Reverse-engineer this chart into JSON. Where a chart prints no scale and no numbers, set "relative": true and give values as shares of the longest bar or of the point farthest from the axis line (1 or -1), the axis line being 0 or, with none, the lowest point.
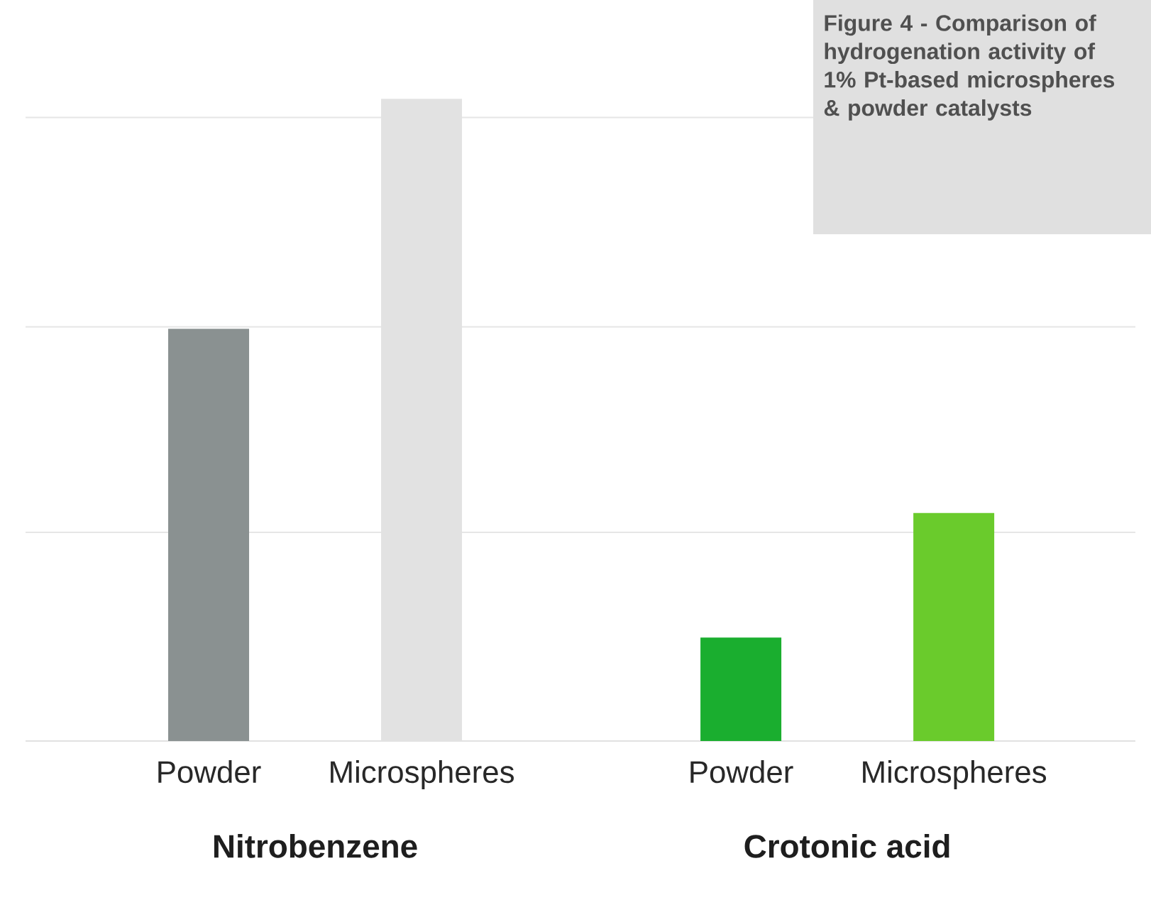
{
  "chart_data": {
    "type": "bar",
    "title": "Figure 4 - Comparison of hydrogenation activity of 1% Pt-based microspheres & powder catalysts",
    "categories": [
      "Powder",
      "Microspheres",
      "Powder",
      "Microspheres"
    ],
    "values": [
      0.642,
      1,
      0.161,
      0.355
    ],
    "colors": [
      "#8a9191",
      "#e2e2e2",
      "#1aae2f",
      "#6acb2c"
    ],
    "relative": true,
    "ref_lines": [
      {
        "axis": "y",
        "value": 0.325,
        "color": "#e6e6e6"
      },
      {
        "axis": "y",
        "value": 0.645,
        "color": "#e6e6e6"
      },
      {
        "axis": "y",
        "value": 0.971,
        "color": "#e6e6e6"
      }
    ],
    "annotations": [
      "Nitrobenzene",
      "Crotonic acid"
    ]
  }
}
